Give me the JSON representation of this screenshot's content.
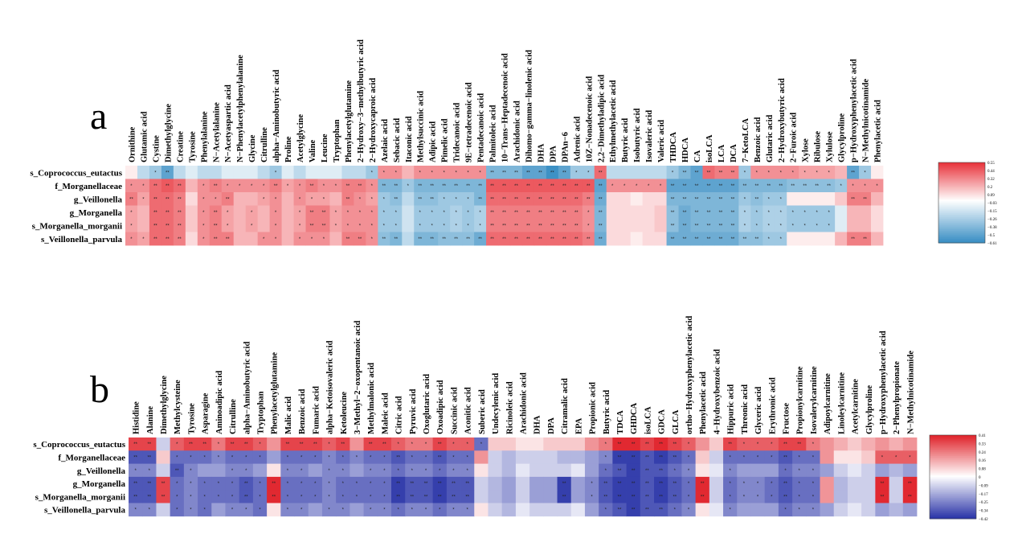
{
  "chart_data": [
    {
      "type": "heatmap",
      "panel_label": "a",
      "rows": [
        "s_Coprococcus_eutactus",
        "f_Morganellaceae",
        "g_Veillonella",
        "g_Morganella",
        "s_Morganella_morganii",
        "s_Veillonella_parvula"
      ],
      "columns": [
        "Ornithine",
        "Glutamic acid",
        "Cystine",
        "Dimethylglycine",
        "Creatine",
        "Tyrosine",
        "Phenylalanine",
        "N−Acetylalanine",
        "N−Acetyaspartic acid",
        "N−Phenylacetylphenylalanine",
        "Glycine",
        "Citrulline",
        "alpha−Aminobutyric acid",
        "Proline",
        "Acetylglycine",
        "Valine",
        "Leucine",
        "Tryptophan",
        "Phenylacetylglutamine",
        "2−Hydroxy−3−methylbutyric acid",
        "2−Hydroxycaproic acid",
        "Azelaic acid",
        "Sebacic acid",
        "Itaconic acid",
        "Methylsuccinic acid",
        "Adipic acid",
        "Pimelic acid",
        "Tridecanoic acid",
        "9E−tetradecenoic acid",
        "Pentadecanoic acid",
        "Palmitoleic acid",
        "10−Trans−Heptadecenoic acid",
        "Arachidonic acid",
        "Dihomo−gamma−linolenic acid",
        "DHA",
        "DPA",
        "DPAn−6",
        "Adrenic acid",
        "10Z−Nonadecenoic acid",
        "2,2−Dimethyladipic acid",
        "Ethylmethylacetic acid",
        "Butyric acid",
        "Isobutyric acid",
        "Isovaleric acid",
        "Valeric acid",
        "THDCA",
        "HDCA",
        "CA",
        "isoLCA",
        "LCA",
        "DCA",
        "7−KetoLCA",
        "Benzoic acid",
        "Glutaric acid",
        "2−Hydroxybutyric acid",
        "2−Furoic acid",
        "Xylose",
        "Ribulose",
        "Xylulose",
        "Glycylproline",
        "p−Hydroxyphenylacetic acid",
        "N−Methylnicotinamide",
        "Phenylacetic acid"
      ],
      "colorbar_ticks": [
        "0.55",
        "0.44",
        "0.32",
        "0.2",
        "0.09",
        "−0.03",
        "−0.15",
        "−0.26",
        "−0.38",
        "−0.5",
        "−0.61"
      ],
      "colorbar_range": [
        -0.61,
        0.55
      ],
      "colors": {
        "high": "#e8343c",
        "mid": "#ffffff",
        "low": "#3a8fc4"
      },
      "values": [
        [
          0.05,
          -0.2,
          -0.3,
          -0.5,
          -0.2,
          -0.1,
          -0.2,
          -0.2,
          -0.1,
          -0.1,
          -0.1,
          -0.2,
          -0.3,
          -0.1,
          -0.2,
          -0.1,
          -0.1,
          -0.1,
          -0.2,
          -0.2,
          -0.3,
          0.3,
          0.3,
          0.2,
          0.3,
          0.3,
          0.3,
          0.3,
          0.3,
          0.3,
          -0.4,
          -0.4,
          -0.4,
          -0.5,
          -0.5,
          -0.6,
          -0.5,
          -0.3,
          -0.3,
          0.4,
          -0.2,
          -0.2,
          -0.2,
          -0.2,
          -0.2,
          -0.3,
          -0.4,
          -0.5,
          0.4,
          0.35,
          0.35,
          -0.3,
          0.3,
          0.3,
          0.3,
          0.3,
          0.25,
          0.25,
          0.25,
          0.2,
          -0.5,
          -0.3,
          0.05
        ],
        [
          0.3,
          0.3,
          0.4,
          0.45,
          0.4,
          0.2,
          0.3,
          0.35,
          0.3,
          0.3,
          0.3,
          0.3,
          0.35,
          0.25,
          0.3,
          0.35,
          0.3,
          0.3,
          0.35,
          0.35,
          0.3,
          -0.4,
          -0.4,
          -0.3,
          -0.4,
          -0.4,
          -0.4,
          -0.4,
          -0.4,
          -0.4,
          0.45,
          0.45,
          0.45,
          0.45,
          0.45,
          0.45,
          0.45,
          0.45,
          0.45,
          -0.5,
          0.3,
          0.3,
          0.3,
          0.3,
          0.3,
          -0.5,
          -0.5,
          -0.5,
          -0.5,
          -0.5,
          -0.5,
          -0.4,
          -0.4,
          -0.4,
          -0.4,
          -0.35,
          -0.35,
          -0.35,
          -0.35,
          -0.3,
          0.3,
          0.3,
          0.3
        ],
        [
          0.35,
          0.25,
          0.4,
          0.4,
          0.35,
          0.1,
          0.3,
          0.3,
          0.35,
          0.2,
          0.2,
          0.25,
          0.3,
          0.2,
          0.3,
          0.25,
          0.25,
          0.2,
          0.35,
          0.3,
          0.25,
          -0.3,
          -0.35,
          -0.2,
          -0.35,
          -0.35,
          -0.3,
          -0.3,
          -0.3,
          -0.4,
          0.4,
          0.4,
          0.4,
          0.4,
          0.4,
          0.4,
          0.4,
          0.4,
          0.35,
          -0.45,
          0.1,
          0.1,
          0.05,
          0.1,
          0.1,
          -0.4,
          -0.4,
          -0.4,
          -0.4,
          -0.4,
          -0.4,
          -0.3,
          -0.35,
          -0.3,
          -0.3,
          0.05,
          0.05,
          0.05,
          0.05,
          0.15,
          0.35,
          0.35,
          0.2
        ],
        [
          0.25,
          0.2,
          0.4,
          0.4,
          0.35,
          0.15,
          0.3,
          0.35,
          0.25,
          0.2,
          0.25,
          0.2,
          0.3,
          0.2,
          0.25,
          0.35,
          0.35,
          0.25,
          0.3,
          0.3,
          0.3,
          -0.3,
          -0.3,
          -0.15,
          -0.3,
          -0.3,
          -0.3,
          -0.25,
          -0.3,
          -0.25,
          0.35,
          0.35,
          0.35,
          0.35,
          0.35,
          0.35,
          0.35,
          0.35,
          0.3,
          -0.4,
          0.1,
          0.1,
          0.1,
          0.1,
          0.15,
          -0.35,
          -0.45,
          -0.4,
          -0.4,
          -0.4,
          -0.4,
          -0.25,
          -0.3,
          -0.25,
          -0.25,
          -0.3,
          -0.3,
          -0.3,
          -0.3,
          -0.1,
          0.2,
          0.2,
          0.1
        ],
        [
          0.25,
          0.2,
          0.4,
          0.4,
          0.35,
          0.15,
          0.3,
          0.35,
          0.25,
          0.2,
          0.25,
          0.2,
          0.3,
          0.2,
          0.25,
          0.35,
          0.35,
          0.25,
          0.3,
          0.3,
          0.3,
          -0.3,
          -0.3,
          -0.15,
          -0.3,
          -0.3,
          -0.3,
          -0.25,
          -0.3,
          -0.25,
          0.35,
          0.35,
          0.35,
          0.35,
          0.35,
          0.35,
          0.35,
          0.35,
          0.3,
          -0.4,
          0.1,
          0.1,
          0.1,
          0.1,
          0.15,
          -0.35,
          -0.45,
          -0.4,
          -0.4,
          -0.4,
          -0.4,
          -0.25,
          -0.3,
          -0.25,
          -0.25,
          -0.3,
          -0.3,
          -0.3,
          -0.3,
          -0.1,
          0.2,
          0.2,
          0.1
        ],
        [
          0.3,
          0.25,
          0.4,
          0.4,
          0.35,
          0.1,
          0.3,
          0.35,
          0.35,
          0.2,
          0.2,
          0.3,
          0.3,
          0.2,
          0.3,
          0.3,
          0.3,
          0.2,
          0.35,
          0.35,
          0.3,
          -0.35,
          -0.4,
          -0.2,
          -0.4,
          -0.4,
          -0.35,
          -0.35,
          -0.35,
          -0.45,
          0.4,
          0.4,
          0.4,
          0.4,
          0.4,
          0.4,
          0.4,
          0.4,
          0.35,
          -0.45,
          0.1,
          0.1,
          0.05,
          0.1,
          0.1,
          -0.45,
          -0.45,
          -0.45,
          -0.45,
          -0.45,
          -0.45,
          -0.35,
          -0.35,
          -0.3,
          -0.3,
          0.05,
          0.05,
          0.05,
          0.05,
          0.2,
          0.35,
          0.35,
          0.2
        ]
      ]
    },
    {
      "type": "heatmap",
      "panel_label": "b",
      "rows": [
        "s_Coprococcus_eutactus",
        "f_Morganellaceae",
        "g_Veillonella",
        "g_Morganella",
        "s_Morganella_morganii",
        "s_Veillonella_parvula"
      ],
      "columns": [
        "Histidine",
        "Alanine",
        "Dimethylglycine",
        "Methylcysteine",
        "Tyrosine",
        "Asparagine",
        "Aminoadipic acid",
        "Citrulline",
        "alpha−Aminobutyric acid",
        "Tryptophan",
        "Phenylacetylglutamine",
        "Malic acid",
        "Benzoic acid",
        "Fumaric acid",
        "alpha−Ketoisovaleric acid",
        "Ketoleucine",
        "3−Methyl−2−oxopentanoic acid",
        "Methylmalonic acid",
        "Maleic acid",
        "Citric acid",
        "Pyruvic acid",
        "Oxoglutaric acid",
        "Oxoadipic acid",
        "Succinic acid",
        "Aconitic acid",
        "Suberic acid",
        "Undecylenic acid",
        "Ricinoleic acid",
        "Arachidonic acid",
        "DHA",
        "DPA",
        "Citramalic acid",
        "EPA",
        "Propionic acid",
        "Butyric acid",
        "TDCA",
        "GHDCA",
        "isoLCA",
        "GDCA",
        "GLCA",
        "ortho−Hydroxyphenylacetic acid",
        "Phenylacetic acid",
        "4−Hydroxybenzoic acid",
        "Hippuric acid",
        "Threonic acid",
        "Glyceric acid",
        "Erythronic acid",
        "Fructose",
        "Propionylcarnitine",
        "Isovalerylcarnitine",
        "Adipoylcarnitine",
        "Linoleylcarnitine",
        "Acetylcarnitine",
        "Glycylproline",
        "p−Hydroxyphenylacetic acid",
        "2−Phenylpropionate",
        "N−Methylnicotinamide"
      ],
      "colorbar_ticks": [
        "0.41",
        "0.33",
        "0.24",
        "0.16",
        "0.08",
        "0",
        "−0.09",
        "−0.17",
        "−0.25",
        "−0.34",
        "−0.42"
      ],
      "colorbar_range": [
        -0.42,
        0.41
      ],
      "colors": {
        "high": "#e0242c",
        "mid": "#ffffff",
        "low": "#2b35a8"
      },
      "values": [
        [
          0.35,
          0.35,
          -0.1,
          0.3,
          0.35,
          0.35,
          0.25,
          0.35,
          0.35,
          0.3,
          0.2,
          0.35,
          0.35,
          0.35,
          0.3,
          0.35,
          0.2,
          0.35,
          0.35,
          0.3,
          0.25,
          0.25,
          0.35,
          0.3,
          0.3,
          -0.3,
          0.1,
          0.1,
          0.05,
          0.05,
          0.1,
          0.1,
          0.1,
          0.2,
          0.25,
          0.4,
          0.4,
          0.35,
          0.4,
          0.35,
          0.3,
          0.2,
          0.1,
          0.35,
          0.3,
          0.3,
          0.3,
          0.35,
          0.35,
          0.25,
          0.2,
          0.15,
          0.1,
          0.15,
          0.2,
          0.15,
          0.2
        ],
        [
          -0.35,
          -0.35,
          0.1,
          -0.3,
          -0.3,
          -0.3,
          -0.25,
          -0.3,
          -0.3,
          -0.3,
          -0.2,
          -0.3,
          -0.3,
          -0.3,
          -0.25,
          -0.3,
          -0.25,
          -0.3,
          -0.3,
          -0.35,
          -0.3,
          -0.3,
          -0.35,
          -0.3,
          -0.3,
          0.2,
          -0.1,
          -0.15,
          -0.1,
          -0.1,
          -0.1,
          -0.15,
          -0.15,
          -0.2,
          -0.25,
          -0.4,
          -0.4,
          -0.35,
          -0.4,
          -0.35,
          -0.3,
          0.1,
          -0.1,
          -0.3,
          -0.3,
          -0.3,
          -0.3,
          -0.35,
          -0.3,
          -0.3,
          0.2,
          0.05,
          0.05,
          0.1,
          0.3,
          0.3,
          0.3
        ],
        [
          -0.25,
          -0.25,
          -0.1,
          -0.35,
          -0.25,
          -0.2,
          -0.2,
          -0.25,
          -0.25,
          -0.2,
          0.05,
          -0.25,
          -0.25,
          -0.2,
          -0.25,
          -0.25,
          -0.2,
          -0.25,
          -0.25,
          -0.3,
          -0.25,
          -0.25,
          -0.3,
          -0.25,
          -0.25,
          0.05,
          -0.1,
          -0.15,
          -0.05,
          -0.1,
          -0.1,
          -0.1,
          -0.05,
          -0.2,
          -0.3,
          -0.35,
          -0.4,
          -0.35,
          -0.35,
          -0.3,
          -0.25,
          0.05,
          -0.05,
          -0.25,
          -0.2,
          -0.2,
          -0.2,
          -0.3,
          -0.25,
          -0.25,
          -0.2,
          -0.1,
          -0.05,
          -0.1,
          -0.2,
          -0.15,
          -0.2
        ],
        [
          -0.35,
          -0.35,
          0.35,
          -0.3,
          -0.25,
          -0.3,
          -0.3,
          -0.3,
          -0.35,
          -0.3,
          0.4,
          -0.3,
          -0.3,
          -0.3,
          -0.25,
          -0.3,
          -0.3,
          -0.3,
          -0.3,
          -0.4,
          -0.35,
          -0.35,
          -0.4,
          -0.35,
          -0.35,
          -0.1,
          -0.15,
          -0.2,
          -0.1,
          -0.2,
          -0.2,
          -0.4,
          -0.2,
          -0.25,
          -0.35,
          -0.4,
          -0.4,
          -0.35,
          -0.4,
          -0.35,
          -0.3,
          0.4,
          -0.1,
          -0.3,
          -0.25,
          -0.25,
          -0.3,
          -0.35,
          -0.3,
          -0.3,
          0.2,
          -0.15,
          -0.1,
          -0.1,
          0.4,
          -0.1,
          0.4
        ],
        [
          -0.35,
          -0.35,
          0.35,
          -0.3,
          -0.25,
          -0.3,
          -0.3,
          -0.3,
          -0.35,
          -0.3,
          0.4,
          -0.3,
          -0.3,
          -0.3,
          -0.25,
          -0.3,
          -0.3,
          -0.3,
          -0.3,
          -0.4,
          -0.35,
          -0.35,
          -0.4,
          -0.35,
          -0.35,
          -0.1,
          -0.15,
          -0.2,
          -0.1,
          -0.2,
          -0.2,
          -0.4,
          -0.2,
          -0.25,
          -0.35,
          -0.4,
          -0.4,
          -0.35,
          -0.4,
          -0.35,
          -0.3,
          0.4,
          -0.1,
          -0.3,
          -0.25,
          -0.25,
          -0.3,
          -0.35,
          -0.3,
          -0.3,
          0.2,
          -0.15,
          -0.1,
          -0.1,
          0.4,
          -0.1,
          0.4
        ],
        [
          -0.25,
          -0.25,
          -0.1,
          -0.3,
          -0.25,
          -0.3,
          -0.2,
          -0.25,
          -0.25,
          -0.3,
          0.05,
          -0.25,
          -0.25,
          -0.2,
          -0.25,
          -0.25,
          -0.2,
          -0.25,
          -0.25,
          -0.3,
          -0.25,
          -0.25,
          -0.3,
          -0.25,
          -0.25,
          0.05,
          -0.1,
          -0.15,
          -0.05,
          -0.1,
          -0.1,
          -0.1,
          -0.05,
          -0.2,
          -0.3,
          -0.35,
          -0.4,
          -0.35,
          -0.35,
          -0.3,
          -0.25,
          0.05,
          -0.05,
          -0.25,
          -0.2,
          -0.2,
          -0.2,
          -0.3,
          -0.25,
          -0.25,
          -0.2,
          -0.1,
          -0.05,
          -0.1,
          -0.2,
          -0.15,
          -0.2
        ]
      ]
    }
  ]
}
